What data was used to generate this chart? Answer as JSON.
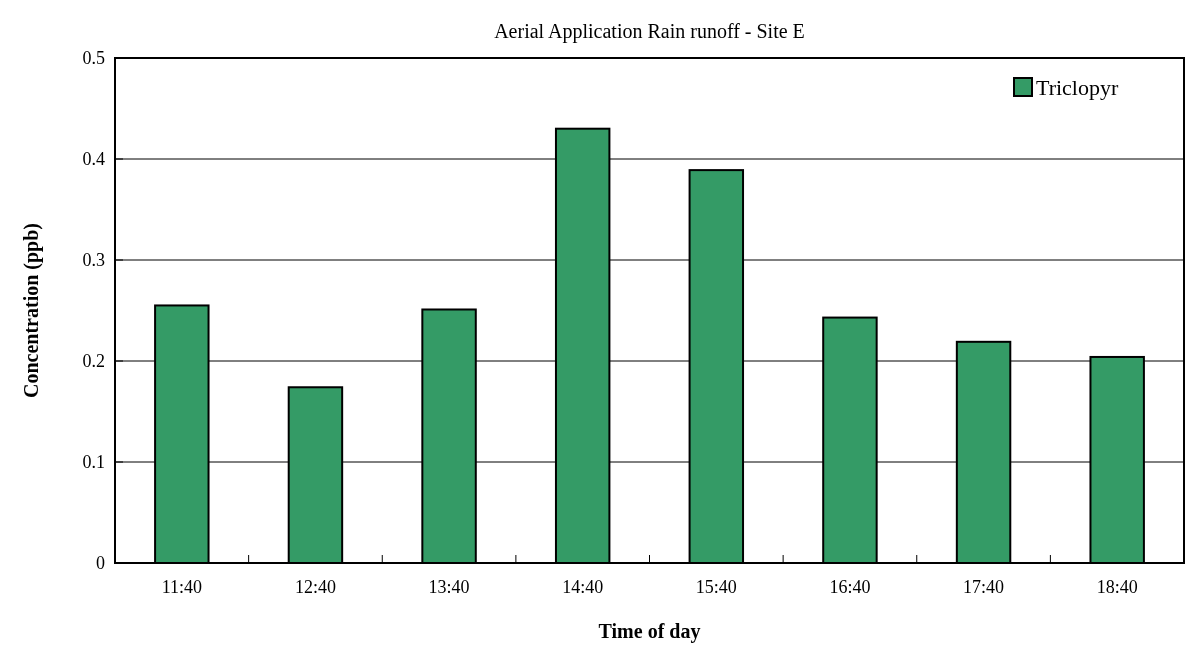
{
  "chart_data": {
    "type": "bar",
    "title": "Aerial Application Rain runoff - Site E",
    "xlabel": "Time of day",
    "ylabel": "Concentration (ppb)",
    "categories": [
      "11:40",
      "12:40",
      "13:40",
      "14:40",
      "15:40",
      "16:40",
      "17:40",
      "18:40"
    ],
    "series": [
      {
        "name": "Triclopyr",
        "color": "#349b66",
        "values": [
          0.255,
          0.174,
          0.251,
          0.43,
          0.389,
          0.243,
          0.219,
          0.204
        ]
      }
    ],
    "ylim": [
      0,
      0.5
    ],
    "yticks": [
      0,
      0.1,
      0.2,
      0.3,
      0.4,
      0.5
    ],
    "grid": "y",
    "legend": "top right"
  }
}
